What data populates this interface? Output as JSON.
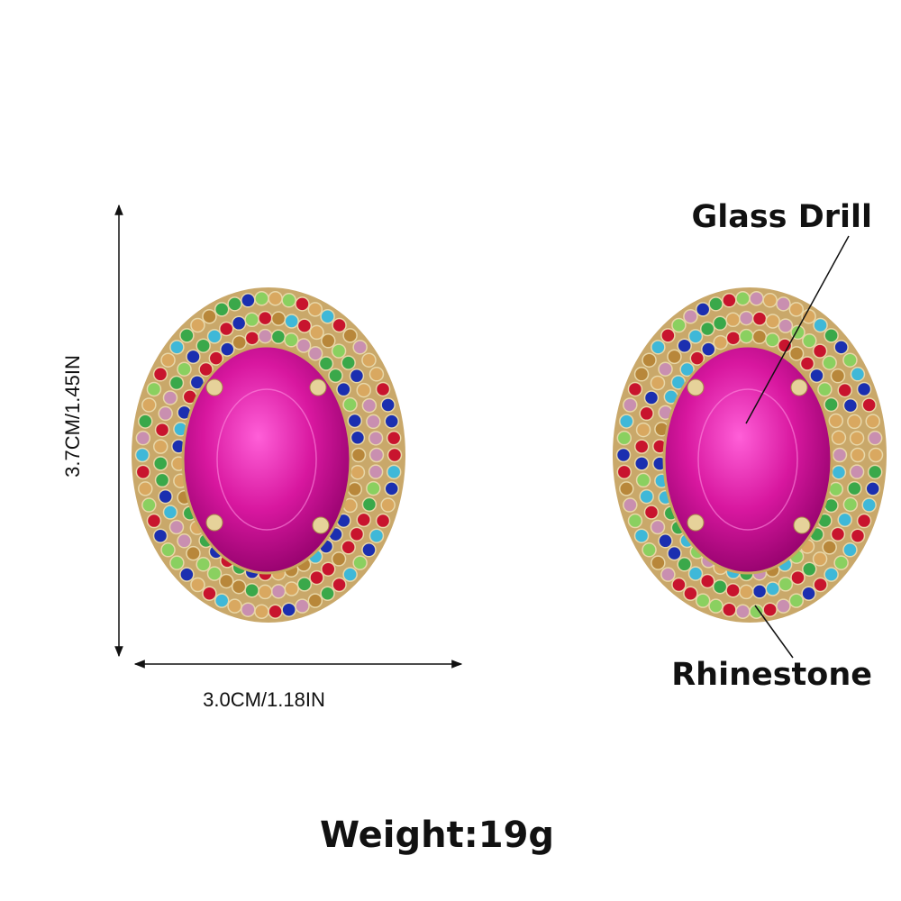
{
  "dimensions": {
    "height": "3.7CM/1.45IN",
    "width": "3.0CM/1.18IN"
  },
  "labels": {
    "glass_drill": "Glass Drill",
    "rhinestone": "Rhinestone"
  },
  "weight": "Weight:19g"
}
